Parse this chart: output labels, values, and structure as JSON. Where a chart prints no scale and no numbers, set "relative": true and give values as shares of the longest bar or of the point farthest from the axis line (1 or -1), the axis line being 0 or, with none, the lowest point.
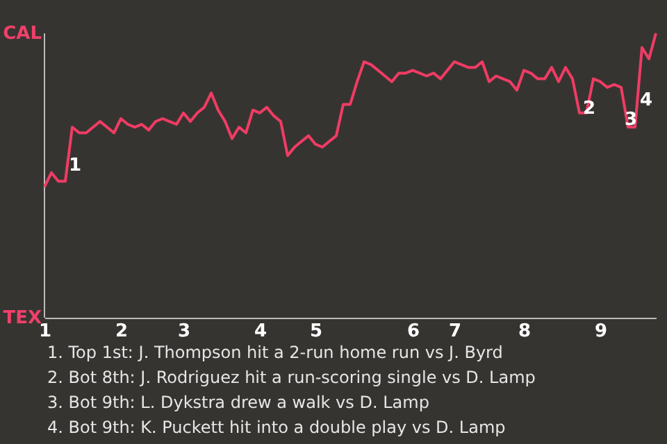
{
  "chart_data": {
    "type": "line",
    "categories": [
      "1",
      null,
      null,
      null,
      null,
      null,
      null,
      null,
      null,
      null,
      null,
      "2",
      null,
      null,
      null,
      null,
      null,
      null,
      null,
      null,
      "3",
      null,
      null,
      null,
      null,
      null,
      null,
      null,
      null,
      null,
      null,
      "4",
      null,
      null,
      null,
      null,
      null,
      null,
      null,
      "5",
      null,
      null,
      null,
      null,
      null,
      null,
      null,
      null,
      null,
      null,
      null,
      null,
      null,
      "6",
      null,
      null,
      null,
      null,
      null,
      "7",
      null,
      null,
      null,
      null,
      null,
      null,
      null,
      null,
      null,
      "8",
      null,
      null,
      null,
      null,
      null,
      null,
      null,
      null,
      null,
      null,
      "9",
      null,
      null,
      null,
      null,
      null,
      null,
      null,
      null
    ],
    "series": [
      {
        "color": "#f03c64",
        "values": [
          0.46,
          0.51,
          0.48,
          0.48,
          0.67,
          0.65,
          0.65,
          0.67,
          0.69,
          0.67,
          0.65,
          0.7,
          0.68,
          0.67,
          0.68,
          0.66,
          0.69,
          0.7,
          0.69,
          0.68,
          0.72,
          0.69,
          0.72,
          0.74,
          0.79,
          0.73,
          0.69,
          0.63,
          0.67,
          0.65,
          0.73,
          0.72,
          0.74,
          0.71,
          0.69,
          0.57,
          0.6,
          0.62,
          0.64,
          0.61,
          0.6,
          0.62,
          0.64,
          0.75,
          0.75,
          0.83,
          0.9,
          0.89,
          0.87,
          0.85,
          0.83,
          0.86,
          0.86,
          0.87,
          0.86,
          0.85,
          0.86,
          0.84,
          0.87,
          0.9,
          0.89,
          0.88,
          0.88,
          0.9,
          0.83,
          0.85,
          0.84,
          0.83,
          0.8,
          0.87,
          0.86,
          0.84,
          0.84,
          0.88,
          0.83,
          0.88,
          0.84,
          0.72,
          0.72,
          0.84,
          0.83,
          0.81,
          0.82,
          0.81,
          0.67,
          0.67,
          0.95,
          0.91,
          1.0
        ]
      }
    ],
    "relative": true,
    "marker": "none",
    "line_style": "solid",
    "annotations": [
      "CAL",
      "TEX",
      "1",
      "2",
      "3",
      "4",
      "1. Top 1st: J. Thompson hit a 2-run home run vs J. Byrd",
      "2. Bot 8th: J. Rodriguez hit a run-scoring single vs D. Lamp",
      "3. Bot 9th: L. Dykstra drew a walk vs D. Lamp",
      "4. Bot 9th: K. Puckett hit into a double play vs D. Lamp"
    ]
  }
}
